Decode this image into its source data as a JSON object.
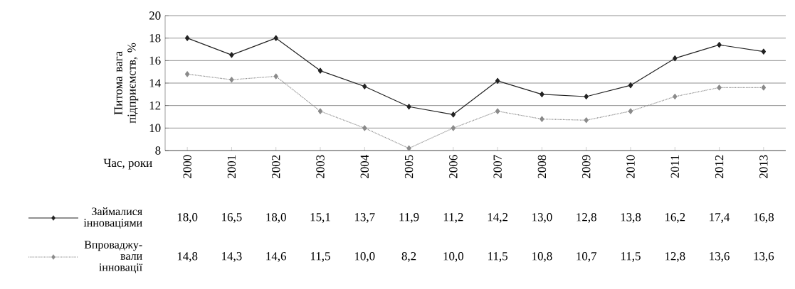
{
  "chart_data": {
    "type": "line",
    "ylabel": "Питома вага підприємств, %",
    "xlabel": "Час, роки",
    "categories": [
      "2000",
      "2001",
      "2002",
      "2003",
      "2004",
      "2005",
      "2006",
      "2007",
      "2008",
      "2009",
      "2010",
      "2011",
      "2012",
      "2013"
    ],
    "series": [
      {
        "name": "Займалися інноваціями",
        "color": "#222222",
        "line_style": "solid",
        "values": [
          18.0,
          16.5,
          18.0,
          15.1,
          13.7,
          11.9,
          11.2,
          14.2,
          13.0,
          12.8,
          13.8,
          16.2,
          17.4,
          16.8
        ],
        "value_labels": [
          "18,0",
          "16,5",
          "18,0",
          "15,1",
          "13,7",
          "11,9",
          "11,2",
          "14,2",
          "13,0",
          "12,8",
          "13,8",
          "16,2",
          "17,4",
          "16,8"
        ]
      },
      {
        "name": "Впроваджу-вали інновації",
        "color": "#8a8a8a",
        "line_style": "dotted",
        "values": [
          14.8,
          14.3,
          14.6,
          11.5,
          10.0,
          8.2,
          10.0,
          11.5,
          10.8,
          10.7,
          11.5,
          12.8,
          13.6,
          13.6
        ],
        "value_labels": [
          "14,8",
          "14,3",
          "14,6",
          "11,5",
          "10,0",
          "8,2",
          "10,0",
          "11,5",
          "10,8",
          "10,7",
          "11,5",
          "12,8",
          "13,6",
          "13,6"
        ]
      }
    ],
    "ylim": [
      8,
      20
    ],
    "yticks": [
      8,
      10,
      12,
      14,
      16,
      18,
      20
    ],
    "grid": "y",
    "legend": "bottom left",
    "marker": "diamond"
  }
}
